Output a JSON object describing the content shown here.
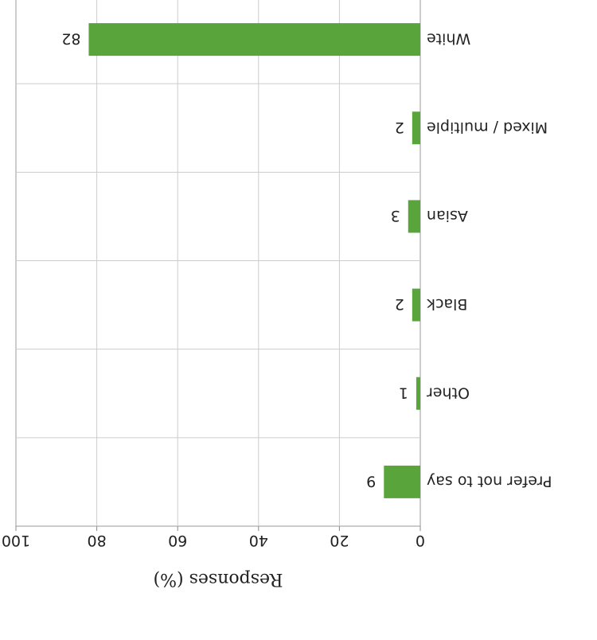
{
  "chart_data": {
    "type": "bar",
    "orientation": "horizontal",
    "rotated_180": true,
    "categories": [
      "White",
      "Mixed / multiple",
      "Asian",
      "Black",
      "Other",
      "Prefer not to say"
    ],
    "values": [
      82,
      2,
      3,
      2,
      1,
      9
    ],
    "data_labels": [
      "82",
      "2",
      "3",
      "2",
      "1",
      "9"
    ],
    "title": "",
    "xlabel": "Responses (%)",
    "ylabel": "",
    "xlim": [
      0,
      100
    ],
    "ticks": [
      "0",
      "20",
      "40",
      "60",
      "80",
      "100"
    ],
    "tick_values": [
      0,
      20,
      40,
      60,
      80,
      100
    ],
    "grid": true,
    "legend": "none",
    "bar_color": "#5aa43c"
  }
}
